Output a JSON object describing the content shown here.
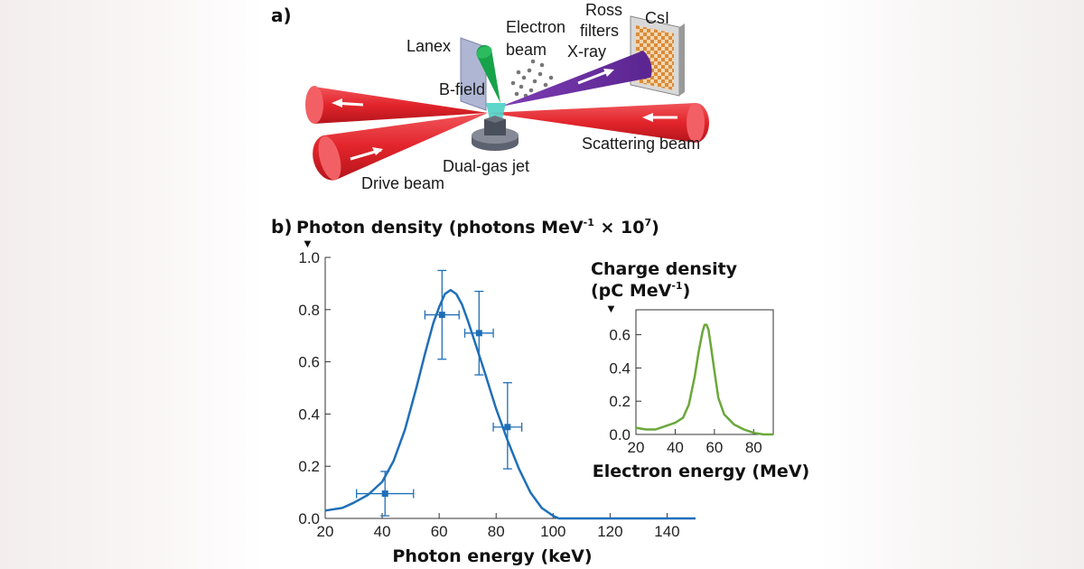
{
  "panel_a": {
    "label": "a)",
    "labels": {
      "lanex": "Lanex",
      "electron_beam_1": "Electron",
      "electron_beam_2": "beam",
      "ross_filters_1": "Ross",
      "ross_filters_2": "filters",
      "csi": "CsI",
      "xray": "X-ray",
      "bfield": "B-field",
      "scattering_beam": "Scattering beam",
      "dual_gas_jet": "Dual-gas jet",
      "drive_beam": "Drive beam"
    },
    "colors": {
      "laser": "#e2242b",
      "electron": "#17a34a",
      "xray": "#6b2fa0",
      "jet": "#4fd1c5"
    }
  },
  "panel_b": {
    "label": "b)",
    "main_title": "Photon density (photons MeV",
    "main_title_sup1": "-1",
    "main_title_mid": " × 10",
    "main_title_sup2": "7",
    "main_title_end": ")",
    "inset_title_1": "Charge density",
    "inset_title_2_pre": "(pC MeV",
    "inset_title_2_sup": "-1",
    "inset_title_2_post": ")",
    "arrow": "▼"
  },
  "chart_data": [
    {
      "type": "line",
      "name": "photon-spectrum",
      "title": "Photon density (photons MeV-1 × 10^7)",
      "xlabel": "Photon energy (keV)",
      "ylabel": "Photon density",
      "xlim": [
        20,
        150
      ],
      "ylim": [
        0,
        1.0
      ],
      "xticks": [
        20,
        40,
        60,
        80,
        100,
        120,
        140
      ],
      "yticks": [
        0.0,
        0.2,
        0.4,
        0.6,
        0.8,
        1.0
      ],
      "ytick_labels": [
        "0.0",
        "0.2",
        "0.4",
        "0.6",
        "0.8",
        "1.0"
      ],
      "color": "#1f6fb8",
      "series": [
        {
          "name": "simulated spectrum",
          "x": [
            20,
            26,
            30,
            35,
            40,
            44,
            48,
            52,
            55,
            58,
            60,
            62,
            64,
            66,
            68,
            70,
            73,
            76,
            80,
            84,
            88,
            92,
            96,
            100,
            102,
            110,
            120,
            130,
            140,
            150
          ],
          "y": [
            0.03,
            0.04,
            0.06,
            0.09,
            0.14,
            0.22,
            0.34,
            0.5,
            0.63,
            0.75,
            0.81,
            0.86,
            0.875,
            0.86,
            0.82,
            0.76,
            0.66,
            0.56,
            0.42,
            0.3,
            0.19,
            0.1,
            0.04,
            0.01,
            0.0,
            0.0,
            0.0,
            0.0,
            0.0,
            0.0
          ]
        }
      ],
      "points": [
        {
          "x": 41,
          "y": 0.095,
          "xerr": [
            31,
            51
          ],
          "yerr": [
            0.01,
            0.18
          ]
        },
        {
          "x": 61,
          "y": 0.78,
          "xerr": [
            55,
            67
          ],
          "yerr": [
            0.61,
            0.95
          ]
        },
        {
          "x": 74,
          "y": 0.71,
          "xerr": [
            69,
            79
          ],
          "yerr": [
            0.55,
            0.87
          ]
        },
        {
          "x": 84,
          "y": 0.35,
          "xerr": [
            79,
            89
          ],
          "yerr": [
            0.19,
            0.52
          ]
        }
      ]
    },
    {
      "type": "line",
      "name": "electron-spectrum-inset",
      "title": "Charge density (pC MeV-1)",
      "xlabel": "Electron energy (MeV)",
      "ylabel": "Charge density",
      "xlim": [
        20,
        90
      ],
      "ylim": [
        0,
        0.75
      ],
      "xticks": [
        20,
        40,
        60,
        80
      ],
      "yticks": [
        0.0,
        0.2,
        0.4,
        0.6
      ],
      "ytick_labels": [
        "0.0",
        "0.2",
        "0.4",
        "0.6"
      ],
      "color": "#6aa83a",
      "series": [
        {
          "name": "charge density",
          "x": [
            20,
            25,
            30,
            35,
            40,
            44,
            47,
            50,
            52,
            54,
            55,
            56,
            57,
            58,
            60,
            62,
            65,
            70,
            75,
            80,
            85,
            90
          ],
          "y": [
            0.04,
            0.03,
            0.03,
            0.05,
            0.07,
            0.1,
            0.18,
            0.35,
            0.5,
            0.62,
            0.66,
            0.66,
            0.63,
            0.55,
            0.38,
            0.22,
            0.12,
            0.06,
            0.03,
            0.01,
            0.0,
            0.0
          ]
        }
      ]
    }
  ]
}
